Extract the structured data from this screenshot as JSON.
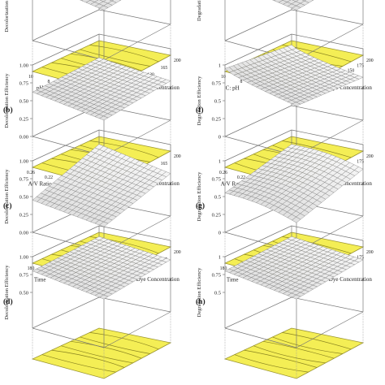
{
  "chart_data": [
    {
      "type": "surface3d",
      "panel_label": "",
      "zlabel": "Decolorization Efficiency",
      "factor1_label": "pH",
      "factor2_label": "Initial Dye Concentration",
      "factor1_ticks": [
        "10",
        "8",
        "6",
        "4",
        "2"
      ],
      "factor2_ticks": [
        "25",
        "60",
        "95",
        "130",
        "165",
        "200"
      ],
      "z_ticks": [],
      "z_top_partial": "0.25"
    },
    {
      "type": "surface3d",
      "panel_label": "",
      "zlabel": "Degradation Ef",
      "factor1_label": "C: pH",
      "factor2_label": "Initial Dye Concentration",
      "factor1_ticks": [
        "10",
        "8",
        "6",
        "4",
        "2"
      ],
      "factor2_ticks": [
        "25",
        "50",
        "75",
        "100",
        "125",
        "150",
        "175",
        "200"
      ],
      "z_ticks": [],
      "z_top_partial": ""
    },
    {
      "type": "surface3d",
      "panel_label": "(b)",
      "zlabel": "Decolorization Efficiency",
      "factor1_label": "A/V Ratio",
      "factor2_label": "Initial Dye Concentration",
      "factor1_ticks": [
        "0.26",
        "0.22",
        "0.19",
        "0.15",
        "0.11"
      ],
      "factor2_ticks": [
        "25",
        "60",
        "95",
        "130",
        "165",
        "200"
      ],
      "z_ticks": [
        "1.00",
        "0.75",
        "0.50",
        "0.25",
        "0.00"
      ],
      "z_top_partial": ""
    },
    {
      "type": "surface3d",
      "panel_label": "(f)",
      "zlabel": "Degradation Efficiency",
      "factor1_label": "A/V Ratio",
      "factor2_label": "Initial Dye Concentration",
      "factor1_ticks": [
        "0.26",
        "0.22",
        "0.19",
        "0.15",
        "0.11"
      ],
      "factor2_ticks": [
        "25",
        "50",
        "75",
        "100",
        "125",
        "150",
        "175",
        "200"
      ],
      "z_ticks": [
        "1",
        "0.75",
        "0.5",
        "0.25",
        "0"
      ],
      "z_top_partial": ""
    },
    {
      "type": "surface3d",
      "panel_label": "(c)",
      "zlabel": "Decolorization Efficiency",
      "factor1_label": "Time",
      "factor2_label": "Initial Dye Concentration",
      "factor1_ticks": [
        "180",
        "135",
        "90",
        "45",
        "0"
      ],
      "factor2_ticks": [
        "25",
        "60",
        "95",
        "130",
        "165",
        "200"
      ],
      "z_ticks": [
        "1.00",
        "0.75",
        "0.50",
        "0.25",
        "0.00"
      ],
      "z_top_partial": ""
    },
    {
      "type": "surface3d",
      "panel_label": "(g)",
      "zlabel": "Degradation Efficiency",
      "factor1_label": "Time",
      "factor2_label": "Initial Dye Concentration",
      "factor1_ticks": [
        "180",
        "135",
        "90",
        "45",
        "0"
      ],
      "factor2_ticks": [
        "25",
        "50",
        "75",
        "100",
        "125",
        "150",
        "175",
        "200"
      ],
      "z_ticks": [
        "1",
        "0.75",
        "0.5",
        "0.25",
        "0"
      ],
      "z_top_partial": ""
    },
    {
      "type": "surface3d",
      "panel_label": "(d)",
      "zlabel": "Decolorization Efficiency",
      "factor1_label": "",
      "factor2_label": "",
      "factor1_ticks": [],
      "factor2_ticks": [],
      "z_ticks": [
        "1.00",
        "0.75",
        "0.50"
      ],
      "z_top_partial": ""
    },
    {
      "type": "surface3d",
      "panel_label": "(h)",
      "zlabel": "Degradation Efficiency",
      "factor1_label": "",
      "factor2_label": "",
      "factor1_ticks": [],
      "factor2_ticks": [],
      "z_ticks": [
        "1",
        "0.75",
        "0.5"
      ],
      "z_top_partial": ""
    }
  ],
  "colors": {
    "contour_fill": "#f4ee55",
    "contour_line": "#8a8420",
    "mesh": "#6e6e6e",
    "axis": "#777777"
  }
}
